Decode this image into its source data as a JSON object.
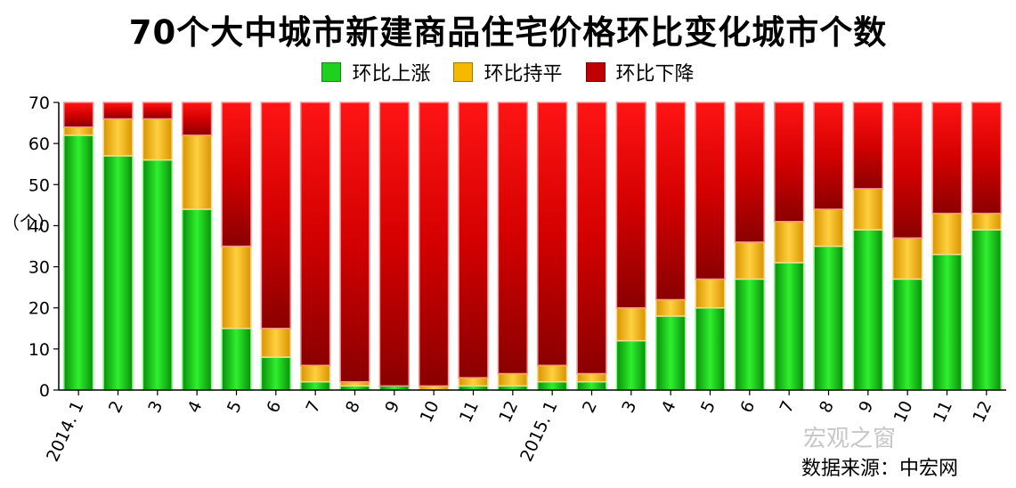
{
  "chart_data": {
    "type": "bar",
    "stacked": true,
    "title": "70个大中城市新建商品住宅价格环比变化城市个数",
    "ylabel": "（个）",
    "xlabel": "",
    "ylim": [
      0,
      70
    ],
    "yticks": [
      0,
      10,
      20,
      30,
      40,
      50,
      60,
      70
    ],
    "grid": false,
    "legend_position": "top",
    "categories": [
      "2014. 1",
      "2",
      "3",
      "4",
      "5",
      "6",
      "7",
      "8",
      "9",
      "10",
      "11",
      "12",
      "2015. 1",
      "2",
      "3",
      "4",
      "5",
      "6",
      "7",
      "8",
      "9",
      "10",
      "11",
      "12"
    ],
    "series": [
      {
        "name": "环比上涨",
        "color": "#1fd11f",
        "values": [
          62,
          57,
          56,
          44,
          15,
          8,
          2,
          1,
          1,
          0,
          1,
          1,
          2,
          2,
          12,
          18,
          20,
          27,
          31,
          35,
          39,
          27,
          33,
          39
        ]
      },
      {
        "name": "环比持平",
        "color": "#f6b800",
        "values": [
          2,
          9,
          10,
          18,
          20,
          7,
          4,
          1,
          0,
          1,
          2,
          3,
          4,
          2,
          8,
          4,
          7,
          9,
          10,
          9,
          10,
          10,
          10,
          4
        ]
      },
      {
        "name": "环比下降",
        "color": "#c00000",
        "values": [
          6,
          4,
          4,
          8,
          35,
          55,
          64,
          68,
          69,
          69,
          67,
          66,
          64,
          66,
          50,
          48,
          43,
          34,
          29,
          26,
          21,
          33,
          27,
          27
        ]
      }
    ]
  },
  "watermark_text": "宏观之窗",
  "source_text": "数据来源：中宏网"
}
